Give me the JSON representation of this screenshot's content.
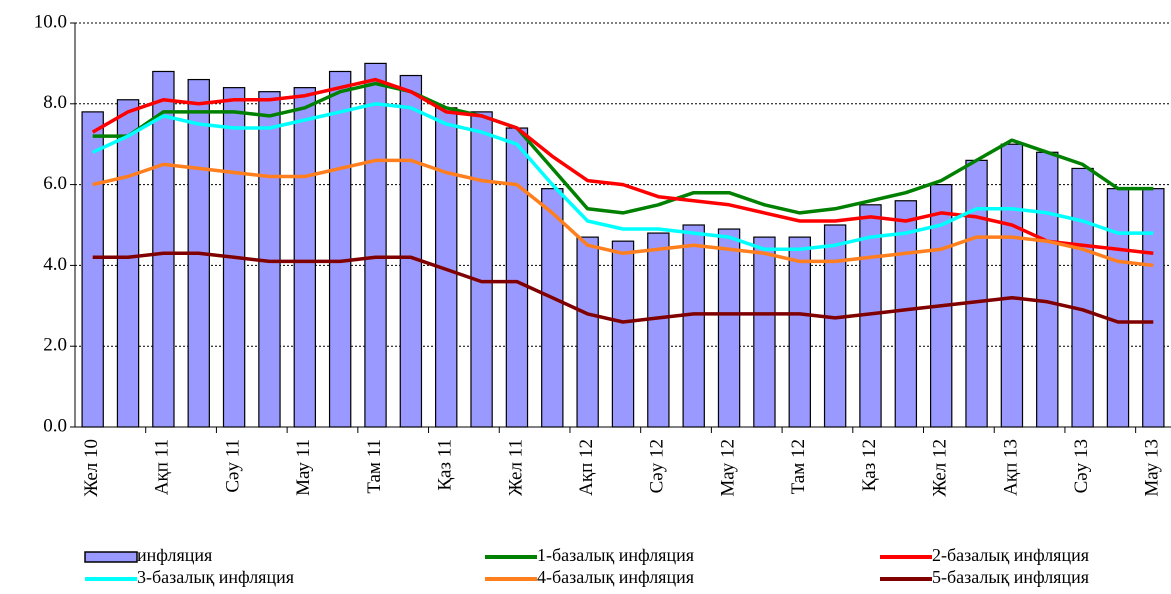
{
  "chart_data": {
    "type": "bar",
    "categories": [
      "Жел 10",
      null,
      "Ақп 11",
      null,
      "Сәу 11",
      null,
      "Мау 11",
      null,
      "Там 11",
      null,
      "Қаз 11",
      null,
      "Жел 11",
      null,
      "Ақп 12",
      null,
      "Сәу 12",
      null,
      "Мау 12",
      null,
      "Там 12",
      null,
      "Қаз 12",
      null,
      "Жел 12",
      null,
      "Ақп 13",
      null,
      "Сәу 13",
      null,
      "Мау 13"
    ],
    "series": [
      {
        "name": "инфляция",
        "type": "bar",
        "color": "#9999ff",
        "values": [
          7.8,
          8.1,
          8.8,
          8.6,
          8.4,
          8.3,
          8.4,
          8.8,
          9.0,
          8.7,
          7.9,
          7.8,
          7.4,
          5.9,
          4.7,
          4.6,
          4.8,
          5.0,
          4.9,
          4.7,
          4.7,
          5.0,
          5.5,
          5.6,
          6.0,
          6.6,
          7.0,
          6.8,
          6.4,
          5.9,
          5.9
        ]
      },
      {
        "name": "1-базалық инфляция",
        "type": "line",
        "color": "#008000",
        "values": [
          7.2,
          7.2,
          7.8,
          7.8,
          7.8,
          7.7,
          7.9,
          8.3,
          8.5,
          8.3,
          7.9,
          7.7,
          7.4,
          6.4,
          5.4,
          5.3,
          5.5,
          5.8,
          5.8,
          5.5,
          5.3,
          5.4,
          5.6,
          5.8,
          6.1,
          6.6,
          7.1,
          6.8,
          6.5,
          5.9,
          5.9
        ]
      },
      {
        "name": "2-базалық инфляция",
        "type": "line",
        "color": "#ff0000",
        "values": [
          7.3,
          7.8,
          8.1,
          8.0,
          8.1,
          8.1,
          8.2,
          8.4,
          8.6,
          8.3,
          7.8,
          7.7,
          7.4,
          6.7,
          6.1,
          6.0,
          5.7,
          5.6,
          5.5,
          5.3,
          5.1,
          5.1,
          5.2,
          5.1,
          5.3,
          5.2,
          5.0,
          4.6,
          4.5,
          4.4,
          4.3
        ]
      },
      {
        "name": "3-базалық инфляция",
        "type": "line",
        "color": "#00ffff",
        "values": [
          6.8,
          7.2,
          7.7,
          7.5,
          7.4,
          7.4,
          7.6,
          7.8,
          8.0,
          7.9,
          7.5,
          7.3,
          7.0,
          6.0,
          5.1,
          4.9,
          4.9,
          4.8,
          4.7,
          4.4,
          4.4,
          4.5,
          4.7,
          4.8,
          5.0,
          5.4,
          5.4,
          5.3,
          5.1,
          4.8,
          4.8
        ]
      },
      {
        "name": "4-базалық инфляция",
        "type": "line",
        "color": "#ff7f1e",
        "values": [
          6.0,
          6.2,
          6.5,
          6.4,
          6.3,
          6.2,
          6.2,
          6.4,
          6.6,
          6.6,
          6.3,
          6.1,
          6.0,
          5.3,
          4.5,
          4.3,
          4.4,
          4.5,
          4.4,
          4.3,
          4.1,
          4.1,
          4.2,
          4.3,
          4.4,
          4.7,
          4.7,
          4.6,
          4.4,
          4.1,
          4.0
        ]
      },
      {
        "name": "5-базалық инфляция",
        "type": "line",
        "color": "#800000",
        "values": [
          4.2,
          4.2,
          4.3,
          4.3,
          4.2,
          4.1,
          4.1,
          4.1,
          4.2,
          4.2,
          3.9,
          3.6,
          3.6,
          3.2,
          2.8,
          2.6,
          2.7,
          2.8,
          2.8,
          2.8,
          2.8,
          2.7,
          2.8,
          2.9,
          3.0,
          3.1,
          3.2,
          3.1,
          2.9,
          2.6,
          2.6
        ]
      }
    ],
    "ylim": [
      0,
      10
    ],
    "yticks": [
      {
        "value": 0,
        "label": "0.0"
      },
      {
        "value": 2,
        "label": "2.0"
      },
      {
        "value": 4,
        "label": "4.0"
      },
      {
        "value": 6,
        "label": "6.0"
      },
      {
        "value": 8,
        "label": "8.0"
      },
      {
        "value": 10,
        "label": "10.0"
      }
    ],
    "grid": true,
    "legend": "bottom"
  }
}
